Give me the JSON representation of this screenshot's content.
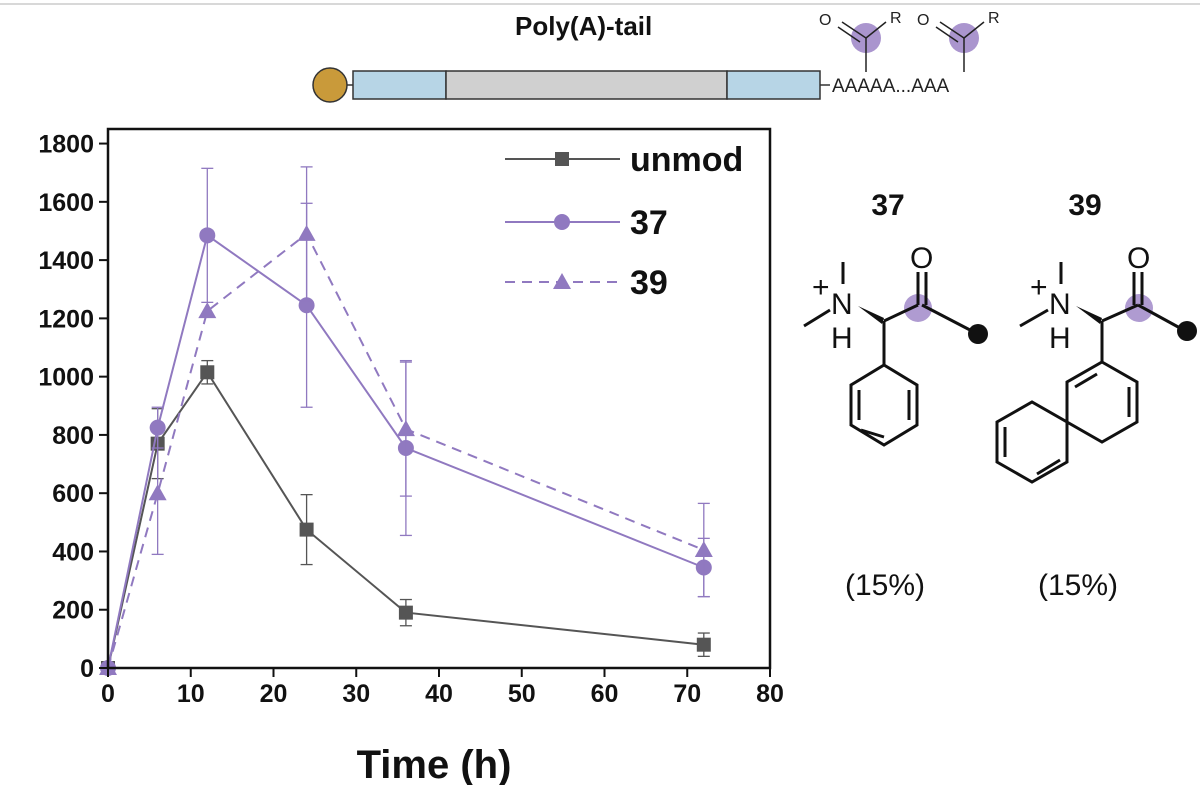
{
  "diagram": {
    "title": "Poly(A)-tail",
    "sequence": "AAAAA...AAA",
    "carbonyl_O": "O",
    "group_R": "R",
    "colors": {
      "cap": "#c99a3a",
      "utr": "#b7d5e6",
      "cds": "#d0d0d0",
      "mod": "#9b82c6"
    }
  },
  "chart_data": {
    "type": "line",
    "xlabel": "Time (h)",
    "ylabel": "",
    "xlim": [
      0,
      80
    ],
    "ylim": [
      0,
      1850
    ],
    "xticks": [
      0,
      10,
      20,
      30,
      40,
      50,
      60,
      70,
      80
    ],
    "yticks": [
      0,
      200,
      400,
      600,
      800,
      1000,
      1200,
      1400,
      1600,
      1800
    ],
    "legend_position": "top-right",
    "series": [
      {
        "name": "unmod",
        "marker": "square",
        "dash": "solid",
        "color": "#555555",
        "x": [
          0,
          6,
          12,
          24,
          36,
          72
        ],
        "y": [
          0,
          770,
          1015,
          475,
          190,
          80
        ],
        "err": [
          0,
          120,
          40,
          120,
          45,
          40
        ]
      },
      {
        "name": "37",
        "marker": "circle",
        "dash": "solid",
        "color": "#9079c0",
        "x": [
          0,
          6,
          12,
          24,
          36,
          72
        ],
        "y": [
          0,
          825,
          1485,
          1245,
          755,
          345
        ],
        "err": [
          0,
          70,
          230,
          350,
          300,
          100
        ]
      },
      {
        "name": "39",
        "marker": "triangle",
        "dash": "dashed",
        "color": "#9079c0",
        "x": [
          0,
          6,
          12,
          24,
          36,
          72
        ],
        "y": [
          0,
          600,
          1225,
          1490,
          820,
          405
        ],
        "err": [
          0,
          210,
          0,
          230,
          230,
          160
        ]
      }
    ]
  },
  "compounds": [
    {
      "label": "37",
      "percent": "(15%)"
    },
    {
      "label": "39",
      "percent": "(15%)"
    }
  ],
  "atoms": {
    "nitrogen": "N",
    "hydrogen": "H",
    "oxygen": "O",
    "plus": "+"
  }
}
